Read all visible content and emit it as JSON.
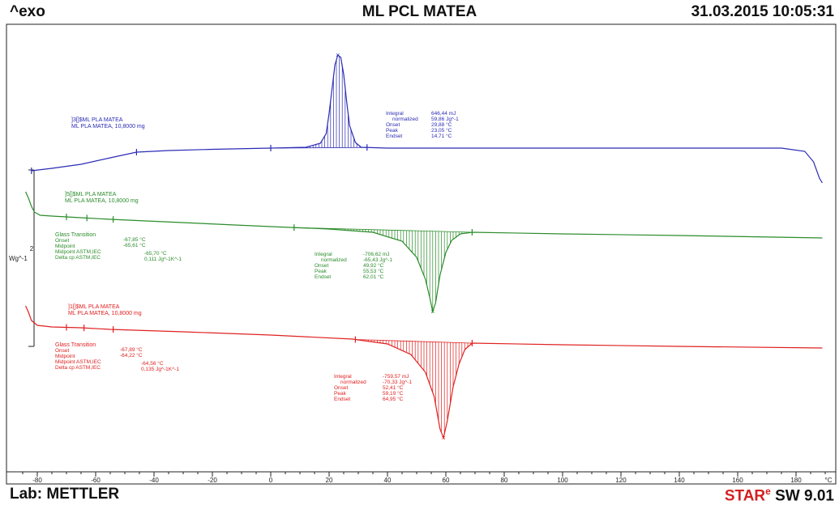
{
  "header": {
    "left": "^exo",
    "title": "ML PCL MATEA",
    "datetime": "31.03.2015 10:05:31"
  },
  "footer": {
    "lab": "Lab: METTLER",
    "software_star": "STAR",
    "software_e": "e",
    "software_rest": " SW 9.01"
  },
  "chart_data": {
    "type": "line",
    "xlim": [
      -85,
      190
    ],
    "xticks": [
      -80,
      -60,
      -40,
      -20,
      0,
      20,
      40,
      60,
      80,
      100,
      120,
      140,
      160,
      180
    ],
    "xunit": "°C",
    "ylabel": "Wg^-1",
    "scale_bar_value": "2",
    "series": [
      {
        "key": "blue",
        "color": "#2b2bb5",
        "legend": [
          "]3[]$ML PLA MATEA",
          "ML PLA MATEA, 10,8000 mg"
        ],
        "points": [
          [
            -82,
            211
          ],
          [
            -75,
            208
          ],
          [
            -65,
            203
          ],
          [
            -55,
            195
          ],
          [
            -46,
            188
          ],
          [
            -35,
            186
          ],
          [
            -20,
            184.5
          ],
          [
            0,
            183
          ],
          [
            12,
            182
          ],
          [
            17,
            177
          ],
          [
            19,
            165
          ],
          [
            20,
            140
          ],
          [
            21,
            110
          ],
          [
            22,
            80
          ],
          [
            23,
            68
          ],
          [
            24,
            71
          ],
          [
            25,
            92
          ],
          [
            26,
            125
          ],
          [
            27,
            155
          ],
          [
            29,
            176
          ],
          [
            31,
            182
          ],
          [
            40,
            183
          ],
          [
            80,
            183
          ],
          [
            120,
            183
          ],
          [
            160,
            183
          ],
          [
            175,
            183
          ],
          [
            183,
            187
          ],
          [
            186,
            200
          ],
          [
            188,
            220
          ],
          [
            189,
            226
          ]
        ],
        "peak_marker": [
          23,
          68
        ],
        "shade_range": [
          0,
          33
        ],
        "baseline_x": [
          -82,
          189
        ],
        "markers_x": [
          -82,
          -46,
          0,
          33
        ],
        "annotation": {
          "labels": [
            "Integral",
            "normalized",
            "Onset",
            "Peak",
            "Endset"
          ],
          "values": [
            "646,44 mJ",
            "59,86 Jg^-1",
            "29,88 °C",
            "23,05 °C",
            "14,71 °C"
          ]
        }
      },
      {
        "key": "green",
        "color": "#2a8c2a",
        "legend": [
          "]5[]$ML PLA MATEA",
          "ML PLA MATEA, 10,8000 mg"
        ],
        "points": [
          [
            -84,
            237
          ],
          [
            -83,
            245
          ],
          [
            -82,
            255
          ],
          [
            -81,
            262
          ],
          [
            -79,
            266
          ],
          [
            -75,
            267
          ],
          [
            -65,
            269
          ],
          [
            -55,
            271
          ],
          [
            0,
            280
          ],
          [
            20,
            283
          ],
          [
            35,
            287
          ],
          [
            45,
            298
          ],
          [
            50,
            318
          ],
          [
            53,
            345
          ],
          [
            54.5,
            368
          ],
          [
            55.5,
            385
          ],
          [
            56.5,
            374
          ],
          [
            58,
            340
          ],
          [
            60,
            312
          ],
          [
            62,
            297
          ],
          [
            65,
            289
          ],
          [
            69,
            287
          ],
          [
            100,
            289
          ],
          [
            140,
            291
          ],
          [
            189,
            294
          ]
        ],
        "peak_marker": [
          55.5,
          385
        ],
        "shade_range": [
          8,
          69
        ],
        "baseline_x": [
          -84,
          189
        ],
        "markers_x": [
          -70,
          -63,
          -54,
          8,
          69
        ],
        "annotation": {
          "labels": [
            "Integral",
            "normalized",
            "Onset",
            "Peak",
            "Endset"
          ],
          "values": [
            "-706,62 mJ",
            "-65,43 Jg^-1",
            "49,92 °C",
            "55,53 °C",
            "62,01 °C"
          ]
        },
        "glass_transition": {
          "title": "Glass Transition",
          "labels": [
            "Onset",
            "Midpoint",
            "Midpoint ASTM,IEC",
            "Delta cp ASTM,IEC"
          ],
          "values": [
            "-67,85 °C",
            "-65,61 °C",
            "-65,70 °C",
            "0,111 Jg^-1K^-1"
          ]
        }
      },
      {
        "key": "red",
        "color": "#e02020",
        "legend": [
          "]1[]$ML PLA MATEA",
          "ML PLA MATEA, 10,8000 mg"
        ],
        "points": [
          [
            -84,
            378
          ],
          [
            -83,
            386
          ],
          [
            -82,
            396
          ],
          [
            -80,
            402
          ],
          [
            -75,
            404
          ],
          [
            -65,
            405
          ],
          [
            -55,
            407
          ],
          [
            -30,
            410
          ],
          [
            0,
            414
          ],
          [
            28,
            419
          ],
          [
            40,
            425
          ],
          [
            48,
            438
          ],
          [
            53,
            460
          ],
          [
            56,
            490
          ],
          [
            58,
            530
          ],
          [
            59.2,
            541
          ],
          [
            60.5,
            520
          ],
          [
            62.5,
            478
          ],
          [
            64.5,
            450
          ],
          [
            66.5,
            432
          ],
          [
            69,
            424
          ],
          [
            100,
            426
          ],
          [
            140,
            428
          ],
          [
            189,
            430
          ]
        ],
        "peak_marker": [
          59.2,
          541
        ],
        "shade_range": [
          29,
          69
        ],
        "baseline_x": [
          -84,
          189
        ],
        "markers_x": [
          -70,
          -64,
          -54,
          29,
          69
        ],
        "annotation": {
          "labels": [
            "Integral",
            "normalized",
            "Onset",
            "Peak",
            "Endset"
          ],
          "values": [
            "-759,57 mJ",
            "-70,33 Jg^-1",
            "52,41 °C",
            "59,19 °C",
            "64,95 °C"
          ]
        },
        "glass_transition": {
          "title": "Glass Transition",
          "labels": [
            "Onset",
            "Midpoint",
            "Midpoint ASTM,IEC",
            "Delta cp ASTM,IEC"
          ],
          "values": [
            "-67,89 °C",
            "-64,22 °C",
            "-64,56 °C",
            "0,135 Jg^-1K^-1"
          ]
        }
      }
    ]
  }
}
